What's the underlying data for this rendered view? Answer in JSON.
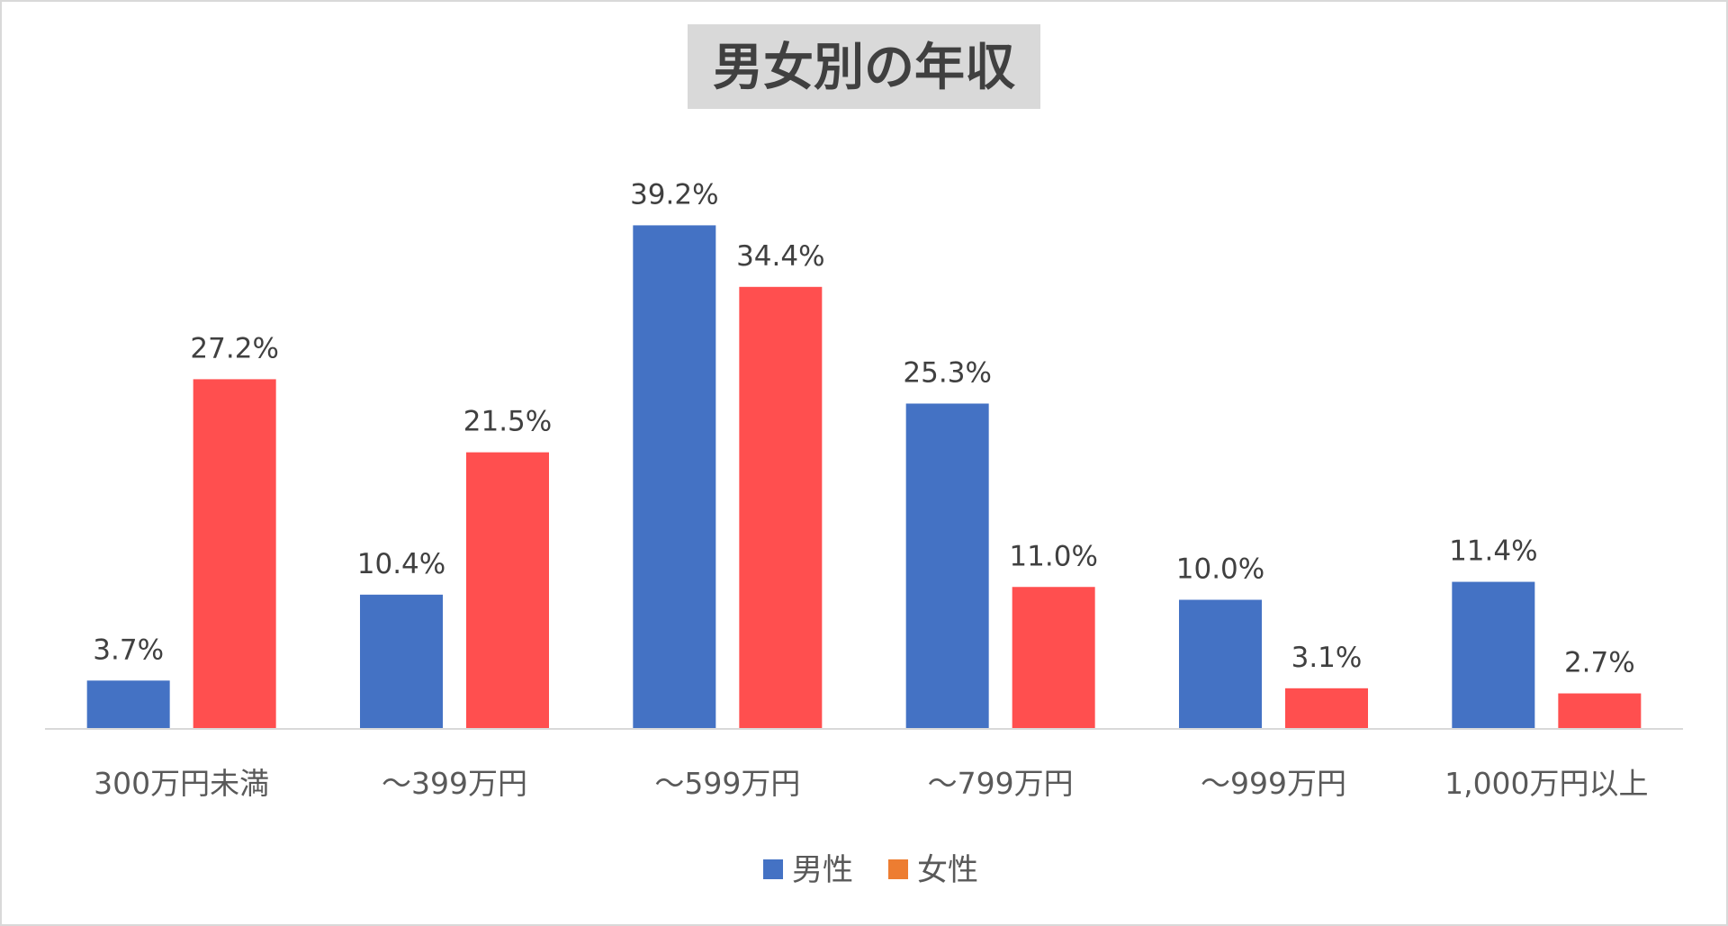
{
  "chart_data": {
    "type": "bar",
    "title": "男女別の年収",
    "categories": [
      "300万円未満",
      "～399万円",
      "～599万円",
      "～799万円",
      "～999万円",
      "1,000万円以上"
    ],
    "series": [
      {
        "name": "男性",
        "values": [
          3.7,
          10.4,
          39.2,
          25.3,
          10.0,
          11.4
        ],
        "labels": [
          "3.7%",
          "10.4%",
          "39.2%",
          "25.3%",
          "10.0%",
          "11.4%"
        ],
        "color": "#4472C4",
        "legend_color": "#4472C4"
      },
      {
        "name": "女性",
        "values": [
          27.2,
          21.5,
          34.4,
          11.0,
          3.1,
          2.7
        ],
        "labels": [
          "27.2%",
          "21.5%",
          "34.4%",
          "11.0%",
          "3.1%",
          "2.7%"
        ],
        "color": "#FF4F4F",
        "legend_color": "#ED7D31"
      }
    ],
    "ylim": [
      0,
      45
    ],
    "grid": false,
    "legend_position": "bottom",
    "title_background": "#d9d9d9",
    "axis_color": "#d9d9d9"
  }
}
